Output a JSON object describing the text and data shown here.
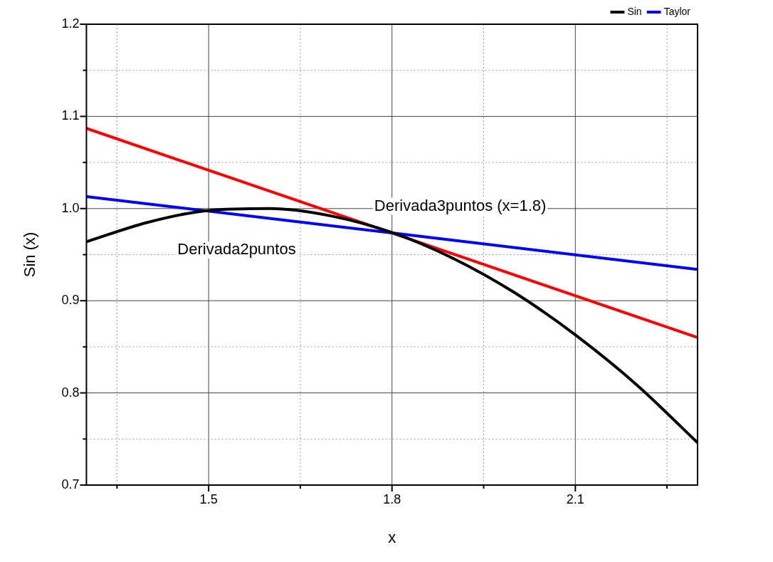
{
  "chart_data": {
    "type": "line",
    "xlabel": "x",
    "ylabel": "Sin (x)",
    "xlim": [
      1.3,
      2.3
    ],
    "xticks": [
      {
        "value": 1.35,
        "label": null
      },
      1.5,
      {
        "value": 1.65,
        "label": null
      },
      1.8,
      {
        "value": 1.95,
        "label": null
      },
      2.1,
      {
        "value": 2.25,
        "label": null
      }
    ],
    "ylim": [
      0.7,
      1.2
    ],
    "yticks": [
      0.7,
      {
        "value": 0.75,
        "label": null
      },
      0.8,
      {
        "value": 0.85,
        "label": null
      },
      0.9,
      {
        "value": 0.95,
        "label": null
      },
      {
        "value": 1.0,
        "label": "1.0"
      },
      {
        "value": 1.05,
        "label": null
      },
      1.1,
      {
        "value": 1.15,
        "label": null
      },
      1.2
    ],
    "grid": true,
    "legend": "top right",
    "marker": "none",
    "line_style": "solid",
    "series": [
      {
        "name": "Sin",
        "color": "#000000",
        "x": [
          1.3,
          1.4,
          1.5,
          1.6,
          1.7,
          1.8,
          1.9,
          2.0,
          2.1,
          2.2,
          2.3
        ],
        "values": [
          0.964,
          0.985,
          0.998,
          1.0,
          0.992,
          0.974,
          0.946,
          0.909,
          0.863,
          0.809,
          0.746
        ]
      },
      {
        "name": "Taylor",
        "color": "#0000ff",
        "x": [
          1.3,
          2.3
        ],
        "values": [
          1.013,
          0.934
        ]
      },
      {
        "color": "#ff0000",
        "x": [
          1.3,
          2.3
        ],
        "values": [
          1.087,
          0.86
        ]
      }
    ],
    "annotations": [
      "Derivada3puntos (x=1.8)",
      "Derivada2puntos"
    ]
  }
}
